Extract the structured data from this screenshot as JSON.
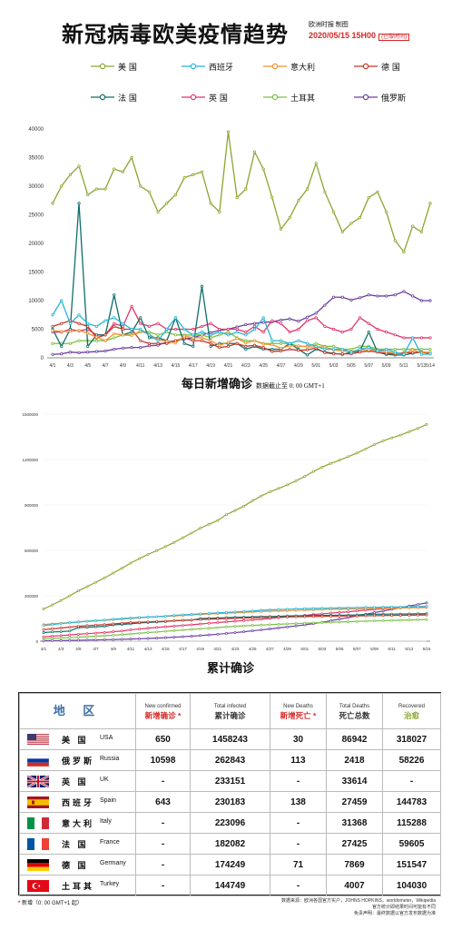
{
  "header": {
    "title": "新冠病毒欧美疫情趋势",
    "source": "欧洲时报 制图",
    "date": "2020/05/15 15H00",
    "timezone": "(巴黎时间)"
  },
  "colors": {
    "usa": "#8aa62f",
    "spain": "#26b5d6",
    "italy": "#f0922f",
    "germany": "#c0392b",
    "france": "#0f6e6a",
    "uk": "#e2336b",
    "turkey": "#7ac143",
    "russia": "#6b3fa0"
  },
  "daily_caption": {
    "title": "每日新增确诊",
    "note": "数据截止至 0: 00 GMT+1"
  },
  "cum_caption": {
    "title": "累计确诊"
  },
  "chart_data": [
    {
      "type": "line",
      "title": "每日新增确诊",
      "ylim": [
        0,
        40000
      ],
      "yticks": [
        0,
        5000,
        10000,
        15000,
        20000,
        25000,
        30000,
        35000,
        40000
      ],
      "x": [
        "4/1",
        "4/2",
        "4/3",
        "4/4",
        "4/5",
        "4/6",
        "4/7",
        "4/8",
        "4/9",
        "4/10",
        "4/11",
        "4/12",
        "4/13",
        "4/14",
        "4/15",
        "4/16",
        "4/17",
        "4/18",
        "4/19",
        "4/20",
        "4/21",
        "4/22",
        "4/23",
        "4/24",
        "4/25",
        "4/26",
        "4/27",
        "4/28",
        "4/29",
        "4/30",
        "5/1",
        "5/2",
        "5/3",
        "5/4",
        "5/5",
        "5/6",
        "5/7",
        "5/8",
        "5/9",
        "5/10",
        "5/11",
        "5/12",
        "5/13",
        "5/14"
      ],
      "xticklabels": [
        "4/1",
        "4/3",
        "4/5",
        "4/7",
        "4/9",
        "4/11",
        "4/13",
        "4/15",
        "4/17",
        "4/19",
        "4/21",
        "4/23",
        "4/25",
        "4/27",
        "4/29",
        "5/01",
        "5/03",
        "5/05",
        "5/07",
        "5/09",
        "5/11",
        "5/13",
        "5/14"
      ],
      "series": [
        {
          "name": "美 国",
          "key": "usa",
          "values": [
            27000,
            30000,
            32000,
            33500,
            28500,
            29500,
            29500,
            33000,
            32500,
            35000,
            30000,
            29000,
            25500,
            27000,
            28500,
            31500,
            32000,
            32500,
            27000,
            25500,
            39500,
            28000,
            29500,
            36000,
            33000,
            28000,
            22500,
            24500,
            27500,
            29500,
            34000,
            29000,
            25500,
            22000,
            23500,
            24500,
            28000,
            29000,
            25500,
            20500,
            18500,
            23000,
            22000,
            27000
          ]
        },
        {
          "name": "西班牙",
          "key": "spain",
          "values": [
            7500,
            10000,
            6000,
            7500,
            6000,
            5500,
            6500,
            7000,
            6000,
            5000,
            5000,
            4000,
            3000,
            5000,
            7000,
            5000,
            4000,
            4500,
            4000,
            4500,
            4000,
            4500,
            4000,
            5000,
            7000,
            3000,
            3000,
            2500,
            3000,
            2500,
            2000,
            1500,
            1500,
            1500,
            1000,
            1500,
            1800,
            1200,
            1500,
            1000,
            600,
            3500,
            600,
            700
          ]
        },
        {
          "name": "意大利",
          "key": "italy",
          "values": [
            4800,
            4600,
            4600,
            4800,
            4300,
            3600,
            3000,
            4200,
            4000,
            3900,
            4700,
            4100,
            3200,
            2900,
            2600,
            3800,
            3500,
            3500,
            3000,
            2200,
            2700,
            3400,
            2600,
            3000,
            2400,
            2300,
            1700,
            2100,
            2100,
            1900,
            1900,
            1900,
            1400,
            1200,
            1100,
            1400,
            1400,
            1300,
            1100,
            800,
            740,
            1400,
            900,
            1000
          ]
        },
        {
          "name": "德 国",
          "key": "germany",
          "values": [
            5500,
            6000,
            6500,
            6000,
            5500,
            3500,
            4000,
            5500,
            5000,
            5000,
            3000,
            2500,
            2500,
            2500,
            3000,
            3500,
            3000,
            3000,
            2500,
            1800,
            2000,
            2500,
            2000,
            2200,
            1800,
            1100,
            1200,
            1500,
            1300,
            1400,
            1700,
            900,
            700,
            700,
            700,
            1000,
            1200,
            1000,
            800,
            700,
            900,
            900,
            1000,
            900
          ]
        },
        {
          "name": "法 国",
          "key": "france",
          "values": [
            5000,
            2000,
            5000,
            27000,
            2000,
            4000,
            4000,
            11000,
            4000,
            4500,
            7000,
            3500,
            3500,
            3000,
            7000,
            2500,
            2000,
            12500,
            2000,
            2500,
            2500,
            2500,
            1500,
            2000,
            1500,
            1500,
            1500,
            2500,
            1500,
            500,
            1500,
            1000,
            800,
            600,
            1000,
            1200,
            4500,
            1000,
            600,
            500,
            500,
            800,
            1000,
            700
          ]
        },
        {
          "name": "英 国",
          "key": "uk",
          "values": [
            4500,
            4500,
            5000,
            4700,
            5000,
            4000,
            4000,
            6000,
            5500,
            9000,
            6000,
            5500,
            6000,
            5000,
            5000,
            5000,
            5000,
            5500,
            6000,
            5000,
            5000,
            5000,
            4500,
            5500,
            4500,
            6500,
            6000,
            4500,
            5000,
            6500,
            7000,
            5500,
            5000,
            4500,
            5000,
            7000,
            6000,
            5000,
            4500,
            4000,
            3500,
            3500,
            3500,
            3500
          ]
        },
        {
          "name": "土耳其",
          "key": "turkey",
          "values": [
            2500,
            2500,
            2500,
            3000,
            3000,
            3000,
            3000,
            3500,
            4000,
            4000,
            4500,
            4500,
            4000,
            4500,
            4000,
            4000,
            4000,
            4000,
            3500,
            4000,
            4500,
            3500,
            3000,
            3000,
            2500,
            2500,
            2500,
            2500,
            2000,
            2000,
            2500,
            2000,
            2000,
            1500,
            1500,
            2000,
            2000,
            1500,
            1500,
            1500,
            1500,
            1500,
            1500,
            1500
          ]
        },
        {
          "name": "俄罗斯",
          "key": "russia",
          "values": [
            600,
            700,
            1000,
            900,
            1000,
            1100,
            1200,
            1500,
            1700,
            1800,
            1800,
            2100,
            2200,
            2800,
            3000,
            3300,
            3500,
            4000,
            4400,
            4800,
            5000,
            5400,
            5800,
            6000,
            6200,
            6300,
            6600,
            6800,
            6400,
            7100,
            7800,
            9200,
            10600,
            10600,
            10100,
            10500,
            11000,
            10800,
            10800,
            11000,
            11600,
            10800,
            10000,
            10000
          ]
        }
      ]
    },
    {
      "type": "line",
      "title": "累计确诊",
      "ylim": [
        0,
        1500000
      ],
      "yticks": [
        0,
        300000,
        600000,
        900000,
        1200000,
        1500000
      ],
      "xticklabels": [
        "4/1",
        "4/3",
        "4/5",
        "4/7",
        "4/9",
        "4/11",
        "4/13",
        "4/15",
        "4/17",
        "4/19",
        "4/21",
        "4/23",
        "4/25",
        "4/27",
        "4/29",
        "5/01",
        "5/03",
        "5/05",
        "5/07",
        "5/09",
        "5/11",
        "5/13",
        "5/15"
      ],
      "start_values": {
        "usa": 213000,
        "spain": 104000,
        "italy": 110000,
        "germany": 77000,
        "france": 57000,
        "uk": 29000,
        "turkey": 16000,
        "russia": 2800
      },
      "end_values": {
        "usa": 1458243,
        "spain": 230183,
        "italy": 223096,
        "germany": 174249,
        "france": 182082,
        "uk": 233151,
        "turkey": 144749,
        "russia": 262843
      }
    }
  ],
  "table": {
    "headers": {
      "region": "地 区",
      "new_confirmed_en": "New confirmed",
      "new_confirmed_zh": "新增确诊",
      "total_infected_en": "Total infected",
      "total_infected_zh": "累计确诊",
      "new_deaths_en": "New Deaths",
      "new_deaths_zh": "新增死亡",
      "total_deaths_en": "Total Deaths",
      "total_deaths_zh": "死亡总数",
      "recovered_en": "Recovered",
      "recovered_zh": "治愈",
      "star": "*"
    },
    "rows": [
      {
        "flag": "usa",
        "zh": "美 国",
        "en": "USA",
        "new": "650",
        "total": "1458243",
        "new_deaths": "30",
        "deaths": "86942",
        "recovered": "318027"
      },
      {
        "flag": "russia",
        "zh": "俄罗斯",
        "en": "Russia",
        "new": "10598",
        "total": "262843",
        "new_deaths": "113",
        "deaths": "2418",
        "recovered": "58226"
      },
      {
        "flag": "uk",
        "zh": "英 国",
        "en": "UK",
        "new": "-",
        "total": "233151",
        "new_deaths": "-",
        "deaths": "33614",
        "recovered": "-"
      },
      {
        "flag": "spain",
        "zh": "西班牙",
        "en": "Spain",
        "new": "643",
        "total": "230183",
        "new_deaths": "138",
        "deaths": "27459",
        "recovered": "144783"
      },
      {
        "flag": "italy",
        "zh": "意大利",
        "en": "Italy",
        "new": "-",
        "total": "223096",
        "new_deaths": "-",
        "deaths": "31368",
        "recovered": "115288"
      },
      {
        "flag": "france",
        "zh": "法 国",
        "en": "France",
        "new": "-",
        "total": "182082",
        "new_deaths": "-",
        "deaths": "27425",
        "recovered": "59605"
      },
      {
        "flag": "germany",
        "zh": "德 国",
        "en": "Germany",
        "new": "-",
        "total": "174249",
        "new_deaths": "71",
        "deaths": "7869",
        "recovered": "151547"
      },
      {
        "flag": "turkey",
        "zh": "土耳其",
        "en": "Turkey",
        "new": "-",
        "total": "144749",
        "new_deaths": "-",
        "deaths": "4007",
        "recovered": "104030"
      }
    ]
  },
  "footer": {
    "star": "*",
    "note": "新增（0: 00 GMT+1 起）",
    "sources": "数据来源：欧洲各国官方实户，JOHNS HOPKINS，worldometer，Wikipedia",
    "disclaimer": "官方统计即结果时间可能有不同",
    "disclaimer2": "免责声明：最终数据以官方发布数据为准"
  }
}
